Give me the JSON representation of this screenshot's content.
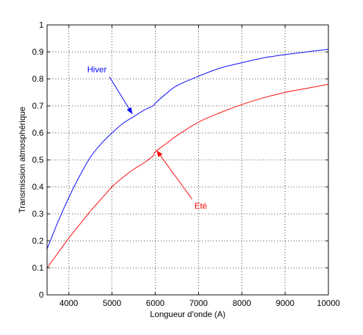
{
  "chart_data": {
    "type": "line",
    "xlabel": "Longueur d'onde (A)",
    "ylabel": "Transmission atmosphérique",
    "xlim": [
      3500,
      10000
    ],
    "ylim": [
      0,
      1
    ],
    "grid": true,
    "x_ticks": [
      4000,
      5000,
      6000,
      7000,
      8000,
      9000,
      10000
    ],
    "y_ticks": [
      0,
      0.1,
      0.2,
      0.3,
      0.4,
      0.5,
      0.6,
      0.7,
      0.8,
      0.9,
      1
    ],
    "x_tick_labels": [
      "4000",
      "5000",
      "6000",
      "7000",
      "8000",
      "9000",
      "10000"
    ],
    "y_tick_labels": [
      "0",
      "0.1",
      "0.2",
      "0.3",
      "0.4",
      "0.5",
      "0.6",
      "0.7",
      "0.8",
      "0.9",
      "1"
    ],
    "series": [
      {
        "name": "Hiver",
        "color": "#0000ff",
        "x": [
          3500,
          3750,
          4000,
          4250,
          4500,
          4750,
          5000,
          5250,
          5500,
          5750,
          5950,
          6000,
          6250,
          6500,
          7000,
          7500,
          8000,
          8500,
          9000,
          9500,
          10000
        ],
        "y": [
          0.17,
          0.27,
          0.36,
          0.44,
          0.51,
          0.56,
          0.6,
          0.635,
          0.66,
          0.685,
          0.7,
          0.71,
          0.745,
          0.775,
          0.81,
          0.84,
          0.86,
          0.878,
          0.89,
          0.9,
          0.91
        ]
      },
      {
        "name": "Eté",
        "color": "#ff0000",
        "x": [
          3500,
          3750,
          4000,
          4250,
          4500,
          4750,
          5000,
          5250,
          5500,
          5750,
          5950,
          6000,
          6250,
          6500,
          7000,
          7500,
          8000,
          8500,
          9000,
          9500,
          10000
        ],
        "y": [
          0.1,
          0.155,
          0.21,
          0.26,
          0.31,
          0.355,
          0.4,
          0.435,
          0.465,
          0.49,
          0.515,
          0.53,
          0.56,
          0.59,
          0.64,
          0.675,
          0.705,
          0.73,
          0.75,
          0.765,
          0.78
        ]
      }
    ],
    "annotations": [
      {
        "text": "Hiver",
        "color": "#0000ff",
        "label_at": [
          4650,
          0.835
        ],
        "arrow_from": [
          4940,
          0.808
        ],
        "arrow_to": [
          5470,
          0.67
        ]
      },
      {
        "text": "Eté",
        "color": "#ff0000",
        "label_at": [
          7050,
          0.33
        ],
        "arrow_from": [
          6850,
          0.355
        ],
        "arrow_to": [
          6030,
          0.535
        ]
      }
    ]
  }
}
